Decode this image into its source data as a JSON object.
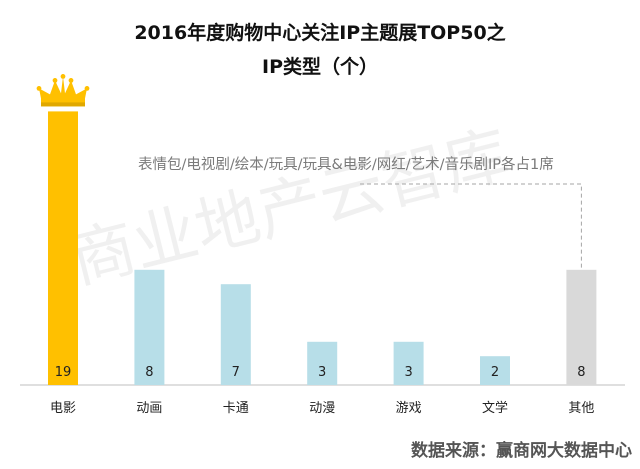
{
  "title_line1": "2016年度购物中心关注IP主题展TOP50之",
  "title_line2": "IP类型（个）",
  "annotation": "表情包/电视剧/绘本/玩具/玩具&电影/网红/艺术/音乐剧IP各占1席",
  "watermark": "商业地产云智库",
  "source": "数据来源：赢商网大数据中心",
  "colors": {
    "highlight_bar": "#FFC000",
    "normal_bar": "#B7DEE8",
    "other_bar": "#D9D9D9",
    "crown": "#FFC000",
    "axis": "#BFBFBF",
    "dashed_line": "#A6A6A6"
  },
  "chart_data": {
    "type": "bar",
    "title": "2016年度购物中心关注IP主题展TOP50之IP类型（个）",
    "xlabel": "",
    "ylabel": "",
    "categories": [
      "电影",
      "动画",
      "卡通",
      "动漫",
      "游戏",
      "文学",
      "其他"
    ],
    "values": [
      19,
      8,
      7,
      3,
      3,
      2,
      8
    ],
    "ylim": [
      0,
      20
    ],
    "grid": false,
    "legend": "none",
    "data_labels": true,
    "highlight_category": "电影"
  }
}
